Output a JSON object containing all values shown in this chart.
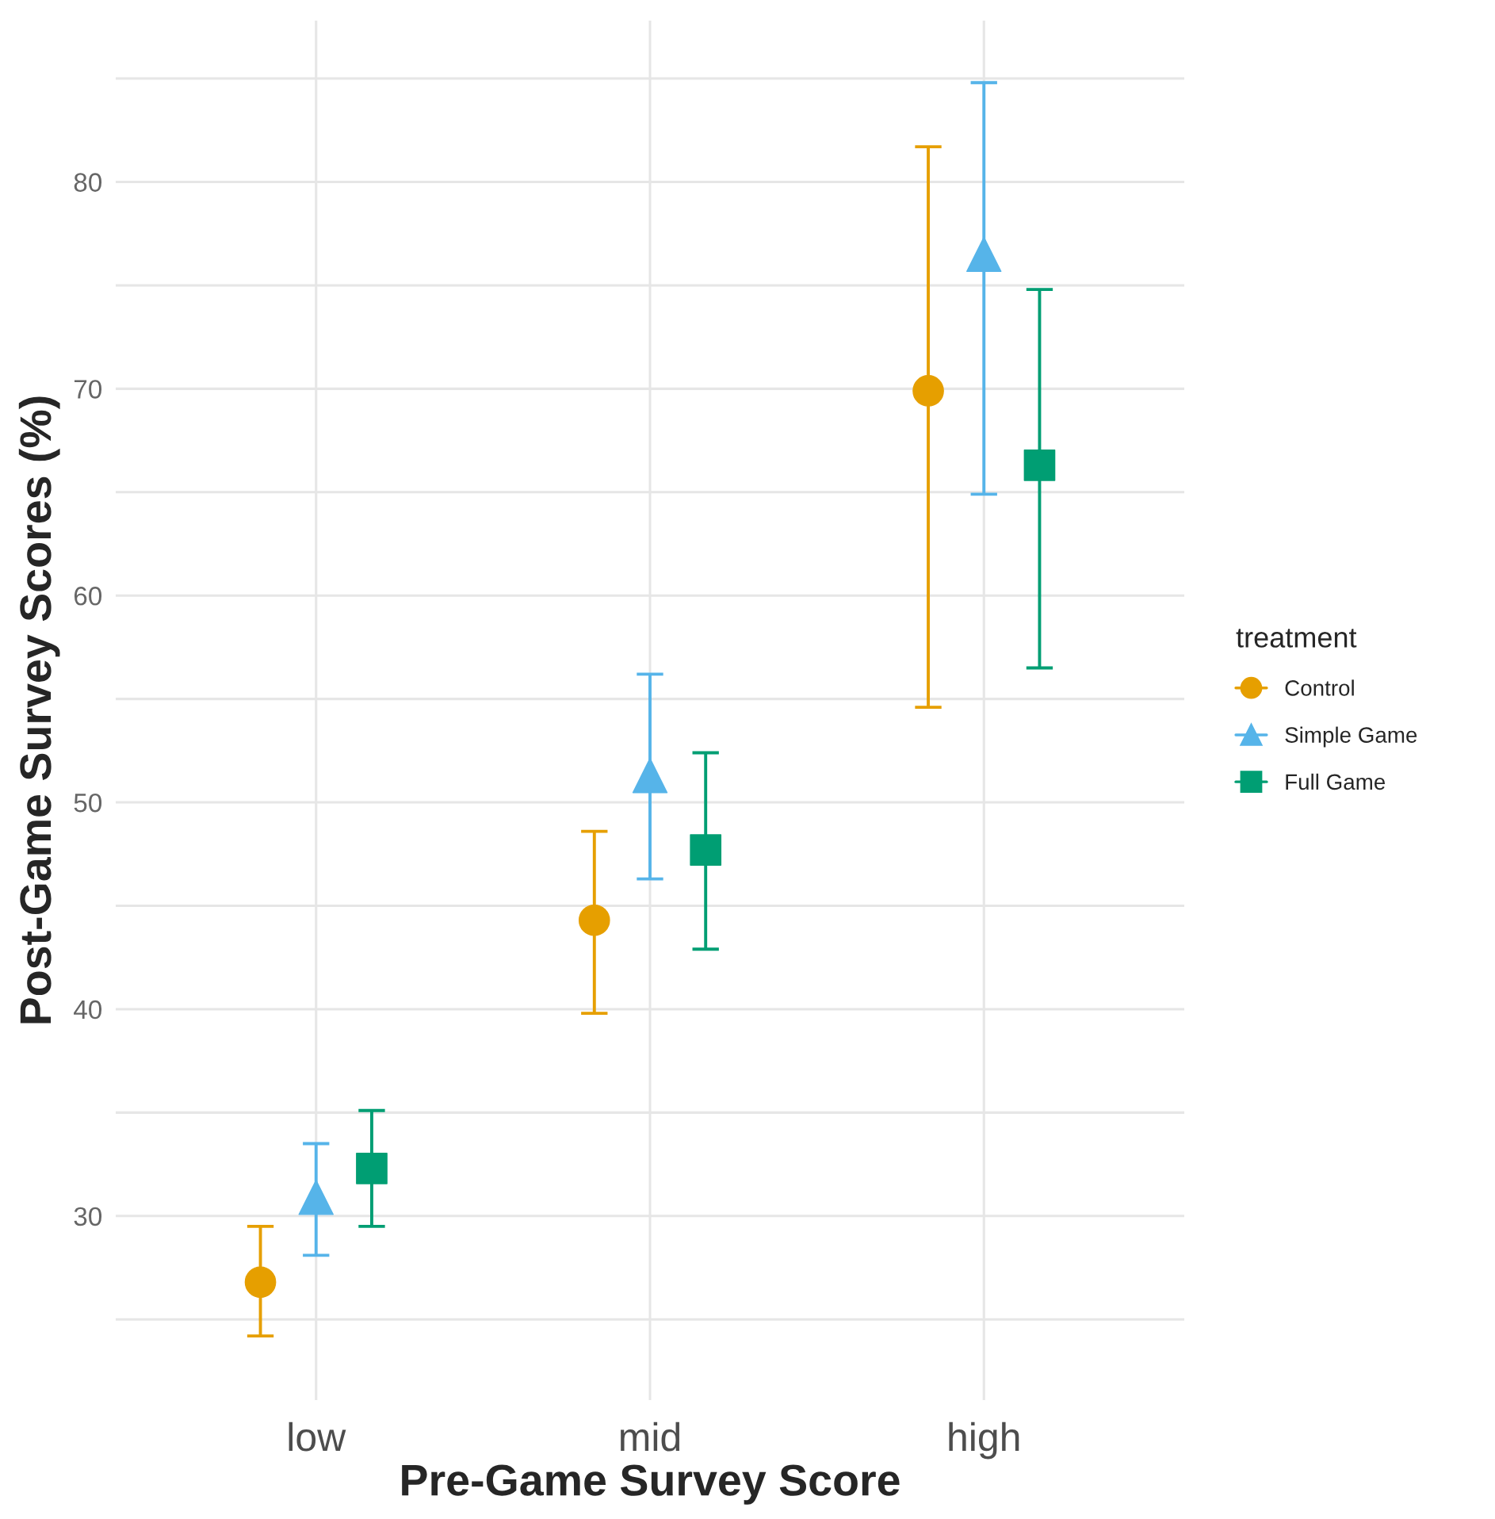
{
  "chart_data": {
    "type": "scatter",
    "xlabel": "Pre-Game Survey Score",
    "ylabel": "Post-Game Survey Scores (%)",
    "legend_title": "treatment",
    "legend": "right",
    "grid": true,
    "categories": [
      "low",
      "mid",
      "high"
    ],
    "series": [
      {
        "name": "Control",
        "color": "#E69F00",
        "marker": "circle",
        "values": [
          26.8,
          44.3,
          69.9
        ],
        "errors": [
          [
            24.2,
            29.5
          ],
          [
            39.8,
            48.6
          ],
          [
            54.6,
            81.7
          ]
        ]
      },
      {
        "name": "Simple Game",
        "color": "#56B4E9",
        "marker": "triangle",
        "values": [
          30.9,
          51.3,
          76.5
        ],
        "errors": [
          [
            28.1,
            33.5
          ],
          [
            46.3,
            56.2
          ],
          [
            64.9,
            84.8
          ]
        ]
      },
      {
        "name": "Full Game",
        "color": "#009E73",
        "marker": "square",
        "values": [
          32.3,
          47.7,
          66.3
        ],
        "errors": [
          [
            29.5,
            35.1
          ],
          [
            42.9,
            52.4
          ],
          [
            56.5,
            74.8
          ]
        ]
      }
    ],
    "ylim": [
      21.1,
      87.8
    ],
    "yticks": [
      {
        "value": 25,
        "label": null
      },
      30,
      {
        "value": 35,
        "label": null
      },
      40,
      {
        "value": 45,
        "label": null
      },
      50,
      {
        "value": 55,
        "label": null
      },
      60,
      {
        "value": 65,
        "label": null
      },
      70,
      {
        "value": 75,
        "label": null
      },
      80,
      {
        "value": 85,
        "label": null
      }
    ]
  }
}
